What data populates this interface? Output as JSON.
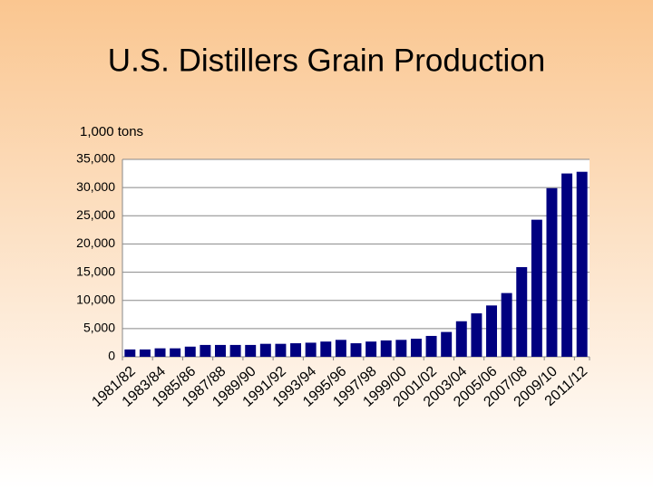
{
  "chart_data": {
    "type": "bar",
    "title": "U.S. Distillers Grain Production",
    "y_label": "1,000 tons",
    "categories": [
      "1981/82",
      null,
      "1983/84",
      null,
      "1985/86",
      null,
      "1987/88",
      null,
      "1989/90",
      null,
      "1991/92",
      null,
      "1993/94",
      null,
      "1995/96",
      null,
      "1997/98",
      null,
      "1999/00",
      null,
      "2001/02",
      null,
      "2003/04",
      null,
      "2005/06",
      null,
      "2007/08",
      null,
      "2009/10",
      null,
      "2011/12"
    ],
    "values": [
      1300,
      1300,
      1500,
      1500,
      1800,
      2100,
      2100,
      2100,
      2100,
      2300,
      2300,
      2400,
      2500,
      2700,
      3000,
      2400,
      2700,
      2900,
      3000,
      3200,
      3700,
      4400,
      6300,
      7700,
      9100,
      11300,
      15900,
      24300,
      29900,
      32500,
      32800
    ],
    "color": "#000080",
    "ylim": [
      0,
      35000
    ],
    "yticks": [
      0,
      {
        "value": 5000,
        "label": "5,000"
      },
      {
        "value": 10000,
        "label": "10,000"
      },
      {
        "value": 15000,
        "label": "15,000"
      },
      {
        "value": 20000,
        "label": "20,000"
      },
      {
        "value": 25000,
        "label": "25,000"
      },
      {
        "value": 30000,
        "label": "30,000"
      },
      {
        "value": 35000,
        "label": "35,000"
      }
    ],
    "grid": true
  }
}
